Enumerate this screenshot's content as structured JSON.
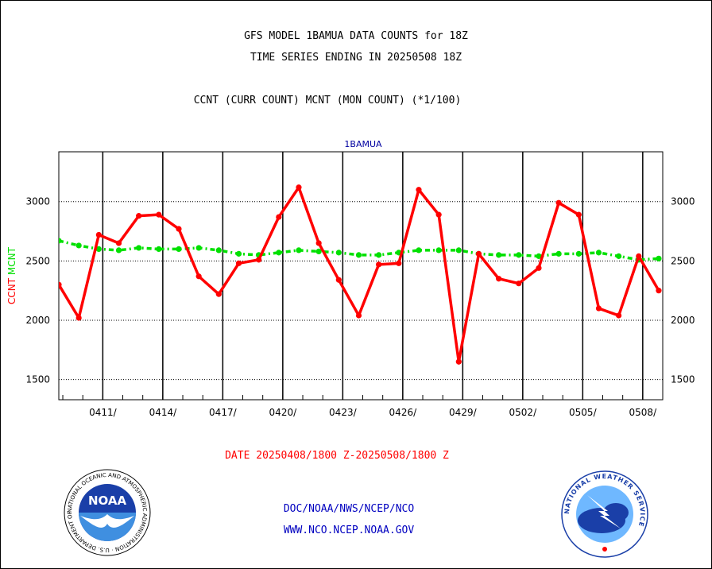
{
  "header": {
    "title_line1": "GFS MODEL 1BAMUA DATA COUNTS for 18Z",
    "title_line2": "TIME SERIES ENDING IN 20250508 18Z",
    "subtitle": "CCNT (CURR COUNT) MCNT (MON COUNT) (*1/100)"
  },
  "footer": {
    "date_range": "DATE 20250408/1800 Z-20250508/1800 Z",
    "org": "DOC/NOAA/NWS/NCEP/NCO",
    "url": "WWW.NCO.NCEP.NOAA.GOV"
  },
  "logos": {
    "left": {
      "name": "noaa-logo",
      "text": "NOAA",
      "ring_text": "NATIONAL OCEANIC AND ATMOSPHERIC ADMINISTRATION · U.S. DEPARTMENT OF COMMERCE"
    },
    "right": {
      "name": "nws-logo",
      "ring_text": "NATIONAL WEATHER SERVICE"
    }
  },
  "colors": {
    "ccnt": "#ff0000",
    "mcnt": "#00e000",
    "panel_title": "#0000a0",
    "footer_red": "#ff0000",
    "footer_blue": "#0000c0"
  },
  "chart_data": {
    "type": "line",
    "title": "1BAMUA",
    "ylabel_parts": [
      {
        "text": "CCNT",
        "color": "#ff0000"
      },
      {
        "text": "MCNT",
        "color": "#00e000"
      }
    ],
    "xlabel": "",
    "ylim": [
      1330,
      3420
    ],
    "yticks": [
      1500,
      2000,
      2500,
      3000
    ],
    "x_range": [
      0,
      30.2
    ],
    "x_ticks": [
      {
        "x": 2.2,
        "label": "0411/"
      },
      {
        "x": 5.2,
        "label": "0414/"
      },
      {
        "x": 8.2,
        "label": "0417/"
      },
      {
        "x": 11.2,
        "label": "0420/"
      },
      {
        "x": 14.2,
        "label": "0423/"
      },
      {
        "x": 17.2,
        "label": "0426/"
      },
      {
        "x": 20.2,
        "label": "0429/"
      },
      {
        "x": 23.2,
        "label": "0502/"
      },
      {
        "x": 26.2,
        "label": "0505/"
      },
      {
        "x": 29.2,
        "label": "0508/"
      }
    ],
    "grid": true,
    "series": [
      {
        "name": "CCNT",
        "color": "#ff0000",
        "style": "solid",
        "x": [
          0,
          1,
          2,
          3,
          4,
          5,
          6,
          7,
          8,
          9,
          10,
          11,
          12,
          13,
          14,
          15,
          16,
          17,
          18,
          19,
          20,
          21,
          22,
          23,
          24,
          25,
          26,
          27,
          28,
          29,
          30
        ],
        "values": [
          2300,
          2020,
          2720,
          2650,
          2880,
          2890,
          2770,
          2370,
          2220,
          2480,
          2510,
          2870,
          3120,
          2650,
          2340,
          2040,
          2470,
          2480,
          3100,
          2890,
          1650,
          2560,
          2350,
          2310,
          2440,
          2990,
          2890,
          2100,
          2040,
          2540,
          2250
        ]
      },
      {
        "name": "MCNT",
        "color": "#00e000",
        "style": "dash-dot",
        "x": [
          0,
          1,
          2,
          3,
          4,
          5,
          6,
          7,
          8,
          9,
          10,
          11,
          12,
          13,
          14,
          15,
          16,
          17,
          18,
          19,
          20,
          21,
          22,
          23,
          24,
          25,
          26,
          27,
          28,
          29,
          30
        ],
        "values": [
          2670,
          2630,
          2600,
          2590,
          2610,
          2600,
          2600,
          2610,
          2590,
          2560,
          2550,
          2570,
          2590,
          2580,
          2570,
          2550,
          2550,
          2570,
          2590,
          2590,
          2590,
          2560,
          2550,
          2550,
          2540,
          2560,
          2560,
          2570,
          2540,
          2510,
          2520
        ]
      }
    ]
  }
}
